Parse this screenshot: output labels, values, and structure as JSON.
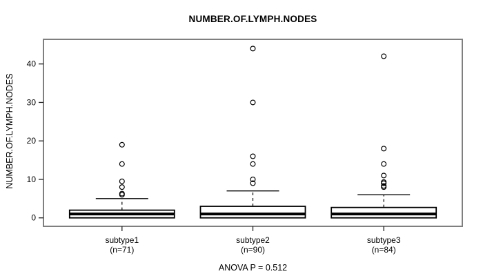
{
  "page": {
    "background": "#ffffff",
    "text_color": "#000000",
    "frame_color": "#7f7f7f"
  },
  "chart_data": {
    "type": "boxplot",
    "title": "NUMBER.OF.LYMPH.NODES",
    "ylabel": "NUMBER.OF.LYMPH.NODES",
    "xlabel": "",
    "annotation": "ANOVA P = 0.512",
    "ylim": [
      -2.2,
      46.4
    ],
    "yticks": [
      0,
      10,
      20,
      30,
      40
    ],
    "grid": false,
    "legend": "none",
    "element_color": "#000000",
    "box_fill": "#ffffff",
    "groups": [
      {
        "label": "subtype1",
        "n_label": "(n=71)",
        "q1": 0,
        "median": 1,
        "q3": 2,
        "whisker_low": 0,
        "whisker_high": 5,
        "outliers": [
          6,
          6.3,
          8,
          9.5,
          14,
          19
        ]
      },
      {
        "label": "subtype2",
        "n_label": "(n=90)",
        "q1": 0,
        "median": 1,
        "q3": 3,
        "whisker_low": 0,
        "whisker_high": 7,
        "outliers": [
          9,
          10,
          14,
          16,
          30,
          44
        ]
      },
      {
        "label": "subtype3",
        "n_label": "(n=84)",
        "q1": 0,
        "median": 1,
        "q3": 2.7,
        "whisker_low": 0,
        "whisker_high": 6,
        "outliers": [
          8,
          8.3,
          9,
          9.3,
          11,
          14,
          18,
          42
        ]
      }
    ]
  }
}
